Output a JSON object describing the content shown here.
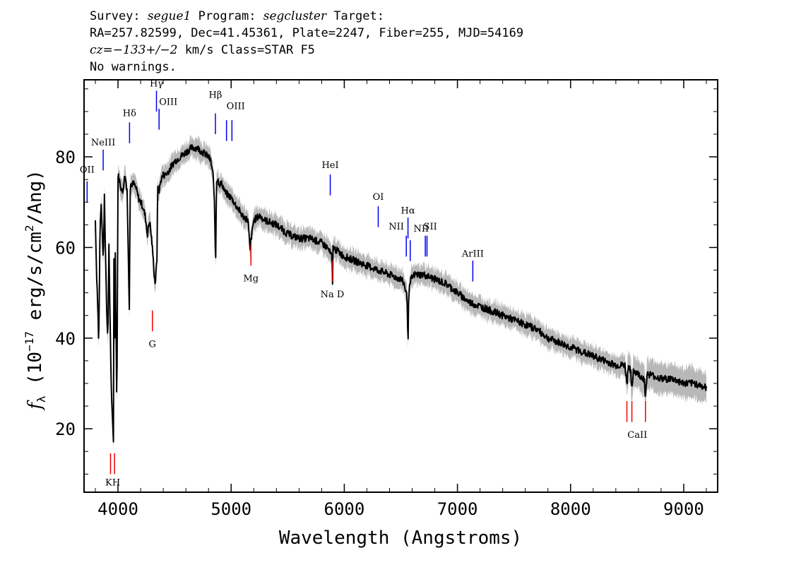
{
  "header": {
    "survey_label": "Survey: ",
    "survey": "segue1",
    "program_label": " Program: ",
    "program": "segcluster",
    "target_label": " Target:",
    "coords": "RA=257.82599, Dec=41.45361, Plate=2247, Fiber=255, MJD=54169",
    "cz": "cz=−133+/−2",
    "cz_rest": " km/s Class=STAR F5",
    "warnings": "No warnings."
  },
  "chart_data": {
    "type": "line",
    "title": "",
    "xlabel": "Wavelength (Angstroms)",
    "ylabel_prefix": "f",
    "ylabel_sub": "λ",
    "ylabel_mid": " (10",
    "ylabel_exp": "−17",
    "ylabel_units": " erg/s/cm",
    "ylabel_sq": "2",
    "ylabel_end": "/Ang)",
    "xlim": [
      3700,
      9300
    ],
    "ylim": [
      6,
      97
    ],
    "xticks": [
      4000,
      5000,
      6000,
      7000,
      8000,
      9000
    ],
    "yticks": [
      20,
      40,
      60,
      80
    ],
    "series": [
      {
        "color": "#000000",
        "noise_color": "#b8b8b8",
        "x": [
          3800,
          3810,
          3820,
          3830,
          3840,
          3850,
          3860,
          3870,
          3880,
          3890,
          3900,
          3910,
          3920,
          3930,
          3940,
          3950,
          3960,
          3965,
          3970,
          3975,
          3980,
          3990,
          4000,
          4020,
          4040,
          4060,
          4080,
          4090,
          4100,
          4102,
          4105,
          4110,
          4120,
          4140,
          4160,
          4180,
          4200,
          4220,
          4240,
          4260,
          4280,
          4300,
          4310,
          4320,
          4330,
          4340,
          4341,
          4345,
          4350,
          4360,
          4380,
          4400,
          4420,
          4450,
          4500,
          4550,
          4600,
          4650,
          4700,
          4750,
          4800,
          4820,
          4840,
          4850,
          4860,
          4861,
          4865,
          4870,
          4880,
          4900,
          4920,
          4950,
          5000,
          5050,
          5100,
          5150,
          5167,
          5172,
          5183,
          5200,
          5250,
          5300,
          5400,
          5500,
          5600,
          5700,
          5800,
          5850,
          5890,
          5896,
          5900,
          5950,
          6000,
          6100,
          6200,
          6300,
          6400,
          6500,
          6530,
          6555,
          6563,
          6570,
          6590,
          6620,
          6700,
          6800,
          6900,
          7000,
          7100,
          7200,
          7300,
          7400,
          7500,
          7600,
          7700,
          7800,
          7900,
          8000,
          8100,
          8200,
          8300,
          8400,
          8480,
          8498,
          8510,
          8530,
          8542,
          8555,
          8600,
          8650,
          8662,
          8675,
          8700,
          8800,
          8900,
          9000,
          9100,
          9200
        ],
        "y": [
          66,
          55,
          48,
          38,
          62,
          70,
          64,
          57,
          72,
          58,
          46,
          40,
          60,
          44,
          30,
          22,
          17,
          68,
          25,
          62,
          48,
          24,
          76,
          74,
          72,
          76,
          73,
          60,
          47,
          38,
          72,
          74,
          74,
          74,
          73,
          71,
          70,
          69,
          67,
          63,
          66,
          61,
          58,
          54,
          52,
          56,
          49,
          60,
          73,
          72,
          75,
          76,
          76,
          77,
          79,
          80,
          81,
          82,
          82,
          81,
          80,
          79,
          76,
          72,
          60,
          52,
          60,
          75,
          75,
          74,
          74,
          72,
          71,
          69,
          67,
          66,
          59,
          61,
          63,
          66,
          67,
          66,
          65,
          63,
          62,
          62,
          61,
          60,
          58,
          52,
          60,
          59,
          58,
          57,
          56,
          55,
          54,
          53,
          52,
          49,
          39,
          50,
          53,
          54,
          54,
          53,
          52,
          50,
          48,
          47,
          46,
          45,
          44,
          43,
          42,
          40,
          39,
          38,
          37,
          36,
          35,
          34,
          34,
          30,
          34,
          33,
          28,
          33,
          32,
          31,
          27,
          32,
          32,
          31,
          31,
          30,
          30,
          29
        ]
      }
    ],
    "lines_emission": [
      {
        "label": "OII",
        "x": 3727,
        "y": 70,
        "h": 4.6,
        "color": "#0000ee"
      },
      {
        "label": "NeIII",
        "x": 3869,
        "y": 77,
        "h": 4.6,
        "color": "#0000ee"
      },
      {
        "label": "Hδ",
        "x": 4102,
        "y": 83,
        "h": 4.6,
        "color": "#0000ee"
      },
      {
        "label": "Hγ",
        "x": 4340,
        "y": 90,
        "h": 4.6,
        "color": "#0000ee"
      },
      {
        "label": "OIII",
        "x": 4363,
        "y": 86,
        "h": 4.6,
        "color": "#0000ee"
      },
      {
        "label": "Hβ",
        "x": 4861,
        "y": 85,
        "h": 4.6,
        "color": "#0000ee"
      },
      {
        "label": "OIII",
        "x": 4959,
        "y": 83.5,
        "h": 4.6,
        "color": "#0000ee"
      },
      {
        "label": "OIII",
        "x": 5007,
        "y": 83.5,
        "h": 4.6,
        "color": "#0000ee"
      },
      {
        "label": "HeI",
        "x": 5876,
        "y": 71.5,
        "h": 4.6,
        "color": "#0000ee"
      },
      {
        "label": "OI",
        "x": 6300,
        "y": 64.5,
        "h": 4.6,
        "color": "#0000ee"
      },
      {
        "label": "NII",
        "x": 6548,
        "y": 58,
        "h": 4.6,
        "color": "#0000ee"
      },
      {
        "label": "Hα",
        "x": 6563,
        "y": 62,
        "h": 4.6,
        "color": "#0000ee"
      },
      {
        "label": "NII",
        "x": 6583,
        "y": 57,
        "h": 4.6,
        "color": "#0000ee"
      },
      {
        "label": "SII",
        "x": 6716,
        "y": 58,
        "h": 4.6,
        "color": "#0000ee"
      },
      {
        "label": "SII",
        "x": 6731,
        "y": 58,
        "h": 4.6,
        "color": "#0000ee"
      },
      {
        "label": "ArIII",
        "x": 7136,
        "y": 52.5,
        "h": 4.6,
        "color": "#0000ee"
      }
    ],
    "lines_absorption": [
      {
        "label": "K",
        "x": 3934,
        "y": 10,
        "h": 4.6,
        "color": "#ee0000"
      },
      {
        "label": "H",
        "x": 3969,
        "y": 10,
        "h": 4.6,
        "color": "#ee0000"
      },
      {
        "label": "G",
        "x": 4304,
        "y": 41.5,
        "h": 4.6,
        "color": "#ee0000"
      },
      {
        "label": "Mg",
        "x": 5175,
        "y": 56,
        "h": 4.6,
        "color": "#ee0000"
      },
      {
        "label": "Na D",
        "x": 5894,
        "y": 52.5,
        "h": 4.6,
        "color": "#ee0000"
      },
      {
        "label": "CaII",
        "x": 8498,
        "y": 21.5,
        "h": 4.6,
        "color": "#ee0000"
      },
      {
        "label": "CaII",
        "x": 8542,
        "y": 21.5,
        "h": 4.6,
        "color": "#ee0000"
      },
      {
        "label": "CaII",
        "x": 8662,
        "y": 21.5,
        "h": 4.6,
        "color": "#ee0000"
      }
    ],
    "line_labels": [
      {
        "text": "OII",
        "x": 3727,
        "y": 76.5,
        "anchor": "middle"
      },
      {
        "text": "NeIII",
        "x": 3869,
        "y": 82.5,
        "anchor": "middle"
      },
      {
        "text": "Hδ",
        "x": 4102,
        "y": 89,
        "anchor": "middle"
      },
      {
        "text": "Hγ",
        "x": 4340,
        "y": 95.5,
        "anchor": "middle"
      },
      {
        "text": "OIII",
        "x": 4363,
        "y": 91.5,
        "anchor": "start"
      },
      {
        "text": "Hβ",
        "x": 4861,
        "y": 93,
        "anchor": "middle"
      },
      {
        "text": "OIII",
        "x": 4959,
        "y": 90.5,
        "anchor": "start"
      },
      {
        "text": "HeI",
        "x": 5876,
        "y": 77.5,
        "anchor": "middle"
      },
      {
        "text": "OI",
        "x": 6300,
        "y": 70.5,
        "anchor": "middle"
      },
      {
        "text": "NII",
        "x": 6460,
        "y": 64,
        "anchor": "middle"
      },
      {
        "text": "Hα",
        "x": 6563,
        "y": 67.5,
        "anchor": "middle"
      },
      {
        "text": "NII",
        "x": 6680,
        "y": 63.5,
        "anchor": "middle"
      },
      {
        "text": "SII",
        "x": 6760,
        "y": 64,
        "anchor": "middle"
      },
      {
        "text": "ArIII",
        "x": 7136,
        "y": 58,
        "anchor": "middle"
      },
      {
        "text": "K",
        "x": 3918,
        "y": 7.5,
        "anchor": "middle"
      },
      {
        "text": "H",
        "x": 3984,
        "y": 7.5,
        "anchor": "middle"
      },
      {
        "text": "G",
        "x": 4304,
        "y": 38,
        "anchor": "middle"
      },
      {
        "text": "Mg",
        "x": 5175,
        "y": 52.5,
        "anchor": "middle"
      },
      {
        "text": "Na D",
        "x": 5894,
        "y": 49,
        "anchor": "middle"
      },
      {
        "text": "CaII",
        "x": 8590,
        "y": 18,
        "anchor": "middle"
      }
    ]
  }
}
